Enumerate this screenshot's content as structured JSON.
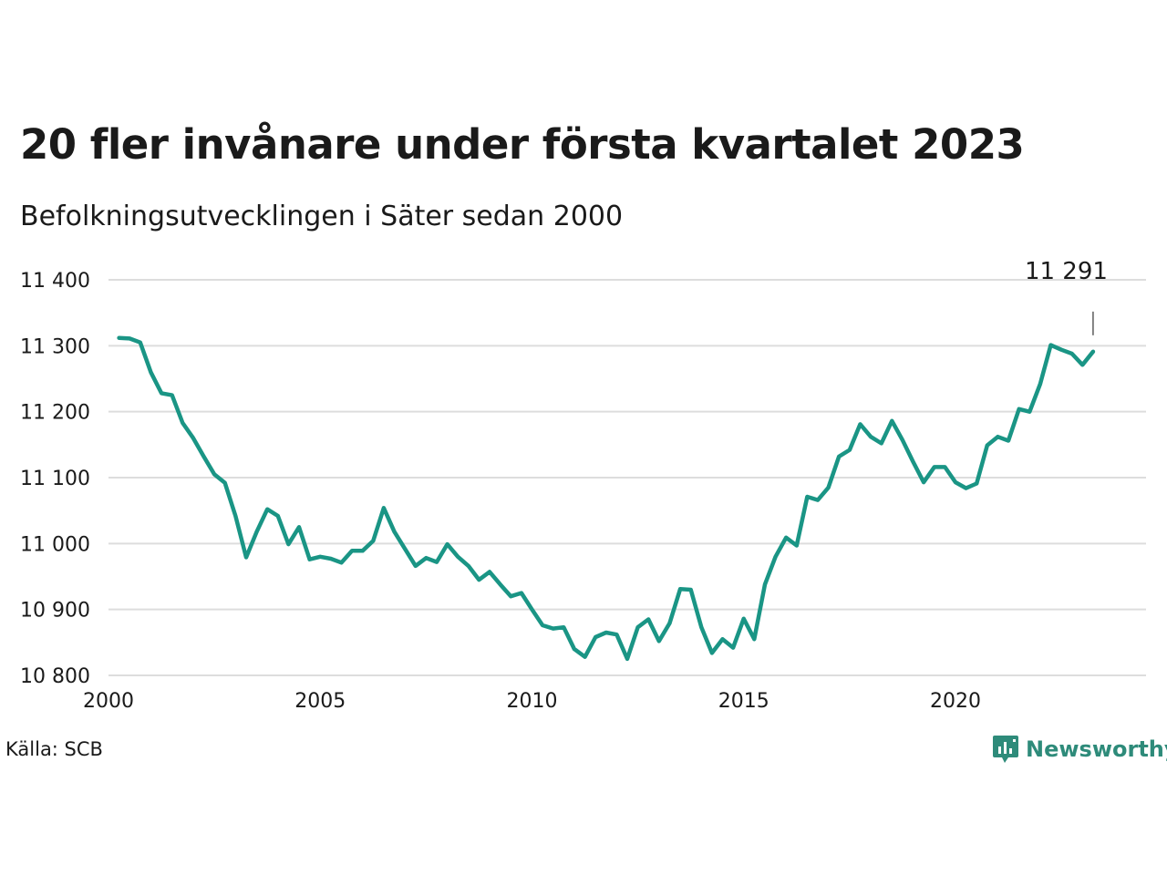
{
  "title": "20 fler invånare under första kvartalet 2023",
  "subtitle": "Befolkningsutvecklingen i Säter sedan 2000",
  "source": "Källa: SCB",
  "brand": {
    "name": "Newsworthy",
    "color": "#2e8b7a",
    "icon": "bar-chart-speech-bubble-icon"
  },
  "colors": {
    "line": "#1a9585",
    "grid": "#dddddd"
  },
  "chart_data": {
    "type": "line",
    "title": "20 fler invånare under första kvartalet 2023",
    "subtitle": "Befolkningsutvecklingen i Säter sedan 2000",
    "xlabel": "",
    "ylabel": "",
    "xlim": [
      2000,
      2024.5
    ],
    "ylim": [
      10800,
      11400
    ],
    "x_ticks": [
      {
        "value": 2000,
        "label": "2000"
      },
      {
        "value": 2005,
        "label": "2005"
      },
      {
        "value": 2010,
        "label": "2010"
      },
      {
        "value": 2015,
        "label": "2015"
      },
      {
        "value": 2020,
        "label": "2020"
      }
    ],
    "y_ticks": [
      {
        "value": 10800,
        "label": "10 800"
      },
      {
        "value": 10900,
        "label": "10 900"
      },
      {
        "value": 11000,
        "label": "11 000"
      },
      {
        "value": 11100,
        "label": "11 100"
      },
      {
        "value": 11200,
        "label": "11 200"
      },
      {
        "value": 11300,
        "label": "11 300"
      },
      {
        "value": 11400,
        "label": "11 400"
      }
    ],
    "grid": true,
    "legend": "none",
    "x": [
      2000.25,
      2000.5,
      2000.75,
      2001,
      2001.25,
      2001.5,
      2001.75,
      2002,
      2002.25,
      2002.5,
      2002.75,
      2003,
      2003.25,
      2003.5,
      2003.75,
      2004,
      2004.25,
      2004.5,
      2004.75,
      2005,
      2005.25,
      2005.5,
      2005.75,
      2006,
      2006.25,
      2006.5,
      2006.75,
      2007,
      2007.25,
      2007.5,
      2007.75,
      2008,
      2008.25,
      2008.5,
      2008.75,
      2009,
      2009.25,
      2009.5,
      2009.75,
      2010,
      2010.25,
      2010.5,
      2010.75,
      2011,
      2011.25,
      2011.5,
      2011.75,
      2012,
      2012.25,
      2012.5,
      2012.75,
      2013,
      2013.25,
      2013.5,
      2013.75,
      2014,
      2014.25,
      2014.5,
      2014.75,
      2015,
      2015.25,
      2015.5,
      2015.75,
      2016,
      2016.25,
      2016.5,
      2016.75,
      2017,
      2017.25,
      2017.5,
      2017.75,
      2018,
      2018.25,
      2018.5,
      2018.75,
      2019,
      2019.25,
      2019.5,
      2019.75,
      2020,
      2020.25,
      2020.5,
      2020.75,
      2021,
      2021.25,
      2021.5,
      2021.75,
      2022,
      2022.25,
      2022.5,
      2022.75,
      2023,
      2023.25
    ],
    "series": [
      {
        "values": [
          11312,
          11311,
          11305,
          11260,
          11228,
          11225,
          11183,
          11160,
          11132,
          11105,
          11092,
          11042,
          10979,
          11018,
          11052,
          11042,
          10999,
          11025,
          10976,
          10980,
          10977,
          10971,
          10989,
          10989,
          11004,
          11054,
          11018,
          10992,
          10966,
          10978,
          10972,
          10999,
          10980,
          10966,
          10945,
          10957,
          10938,
          10920,
          10925,
          10900,
          10876,
          10871,
          10873,
          10840,
          10828,
          10858,
          10865,
          10862,
          10825,
          10873,
          10885,
          10852,
          10879,
          10931,
          10930,
          10873,
          10834,
          10855,
          10842,
          10886,
          10855,
          10938,
          10980,
          11009,
          10997,
          11071,
          11066,
          11085,
          11132,
          11142,
          11181,
          11162,
          11152,
          11186,
          11157,
          11124,
          11093,
          11116,
          11116,
          11093,
          11084,
          11091,
          11149,
          11162,
          11156,
          11204,
          11200,
          11242,
          11301,
          11294,
          11288,
          11271,
          11291
        ]
      }
    ],
    "annotations": [
      {
        "x": 2023.25,
        "y": 11291,
        "label": "11 291"
      }
    ]
  }
}
